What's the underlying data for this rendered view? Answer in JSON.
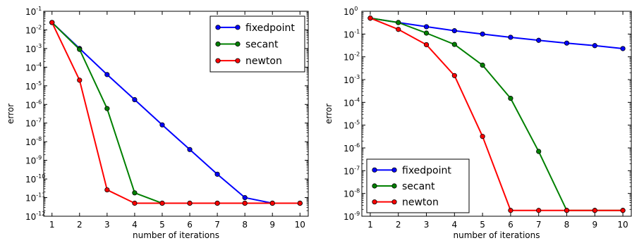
{
  "colors": {
    "fixedpoint": "#0000ff",
    "secant": "#008000",
    "newton": "#ff0000",
    "marker_edge": "#000000"
  },
  "chart_data": [
    {
      "type": "line",
      "title": "",
      "xlabel": "number of iterations",
      "ylabel": "error",
      "yscale": "log",
      "xlim": [
        0.7,
        10.3
      ],
      "ylim_exp": [
        -12,
        -1
      ],
      "xticks": [
        1,
        2,
        3,
        4,
        5,
        6,
        7,
        8,
        9,
        10
      ],
      "yticks": [
        {
          "base": "10",
          "exp": "-12"
        },
        {
          "base": "10",
          "exp": "-11"
        },
        {
          "base": "10",
          "exp": "-10"
        },
        {
          "base": "10",
          "exp": "-9"
        },
        {
          "base": "10",
          "exp": "-8"
        },
        {
          "base": "10",
          "exp": "-7"
        },
        {
          "base": "10",
          "exp": "-6"
        },
        {
          "base": "10",
          "exp": "-5"
        },
        {
          "base": "10",
          "exp": "-4"
        },
        {
          "base": "10",
          "exp": "-3"
        },
        {
          "base": "10",
          "exp": "-2"
        },
        {
          "base": "10",
          "exp": "-1"
        }
      ],
      "legend_position": "top-right",
      "grid": false,
      "x": [
        1,
        2,
        3,
        4,
        5,
        6,
        7,
        8,
        9,
        10
      ],
      "series": [
        {
          "name": "fixedpoint",
          "color": "#0000ff",
          "values": [
            0.025,
            0.001,
            4e-05,
            1.8e-06,
            8e-08,
            3.8e-09,
            1.8e-10,
            1e-11,
            5e-12,
            5e-12
          ]
        },
        {
          "name": "secant",
          "color": "#008000",
          "values": [
            0.025,
            0.0009,
            6e-07,
            1.8e-11,
            5e-12,
            5e-12,
            5e-12,
            5e-12,
            5e-12,
            5e-12
          ]
        },
        {
          "name": "newton",
          "color": "#ff0000",
          "values": [
            0.025,
            2e-05,
            2.6e-11,
            5e-12,
            5e-12,
            5e-12,
            5e-12,
            5e-12,
            5e-12,
            5e-12
          ]
        }
      ]
    },
    {
      "type": "line",
      "title": "",
      "xlabel": "number of iterations",
      "ylabel": "error",
      "yscale": "log",
      "xlim": [
        0.7,
        10.3
      ],
      "ylim_exp": [
        -9,
        0
      ],
      "xticks": [
        1,
        2,
        3,
        4,
        5,
        6,
        7,
        8,
        9,
        10
      ],
      "yticks": [
        {
          "base": "10",
          "exp": "-9"
        },
        {
          "base": "10",
          "exp": "-8"
        },
        {
          "base": "10",
          "exp": "-7"
        },
        {
          "base": "10",
          "exp": "-6"
        },
        {
          "base": "10",
          "exp": "-5"
        },
        {
          "base": "10",
          "exp": "-4"
        },
        {
          "base": "10",
          "exp": "-3"
        },
        {
          "base": "10",
          "exp": "-2"
        },
        {
          "base": "10",
          "exp": "-1"
        },
        {
          "base": "10",
          "exp": "0"
        }
      ],
      "legend_position": "bottom-left",
      "grid": false,
      "x": [
        1,
        2,
        3,
        4,
        5,
        6,
        7,
        8,
        9,
        10
      ],
      "series": [
        {
          "name": "fixedpoint",
          "color": "#0000ff",
          "values": [
            0.5,
            0.32,
            0.21,
            0.14,
            0.1,
            0.072,
            0.053,
            0.04,
            0.031,
            0.023
          ]
        },
        {
          "name": "secant",
          "color": "#008000",
          "values": [
            0.5,
            0.32,
            0.11,
            0.035,
            0.0043,
            0.00015,
            7e-07,
            1.8e-09,
            1.8e-09,
            1.8e-09
          ]
        },
        {
          "name": "newton",
          "color": "#ff0000",
          "values": [
            0.5,
            0.16,
            0.034,
            0.0015,
            3.2e-06,
            1.8e-09,
            1.8e-09,
            1.8e-09,
            1.8e-09,
            1.8e-09
          ]
        }
      ]
    }
  ]
}
